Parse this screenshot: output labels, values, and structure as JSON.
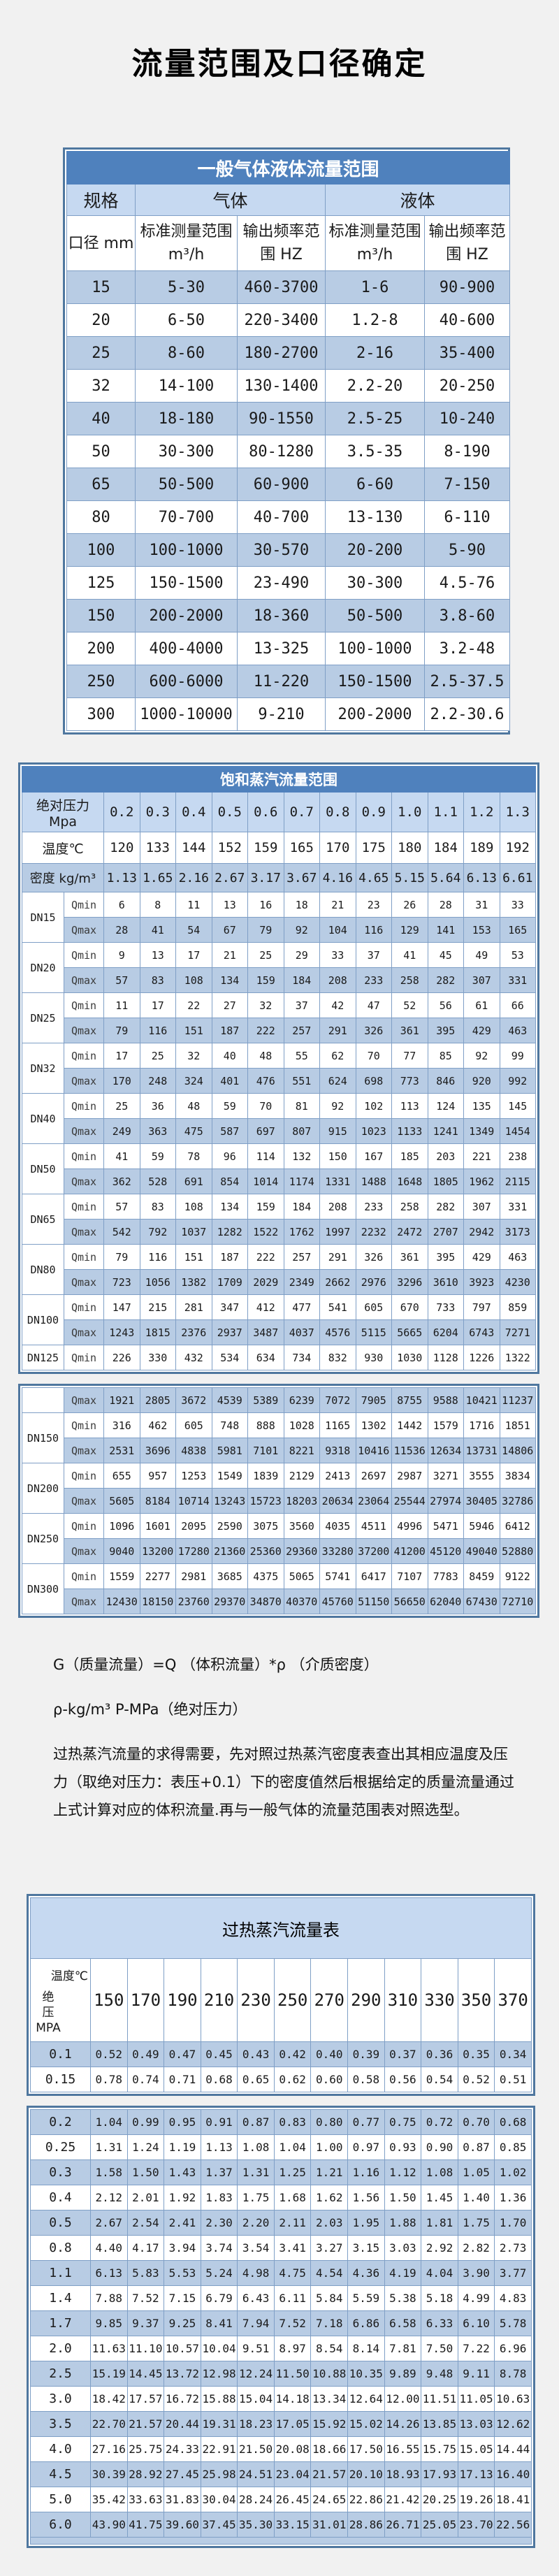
{
  "page_title": "流量范围及口径确定",
  "table1": {
    "title": "一般气体液体流量范围",
    "group_headers": {
      "spec": "规格",
      "gas": "气体",
      "liquid": "液体"
    },
    "sub_headers": {
      "diameter": "口径 mm",
      "range_line1": "标准测量范围",
      "range_line2": "m³/h",
      "freq_line1": "输出频率范",
      "freq_line2": "围 HZ"
    },
    "rows": [
      [
        "15",
        "5-30",
        "460-3700",
        "1-6",
        "90-900"
      ],
      [
        "20",
        "6-50",
        "220-3400",
        "1.2-8",
        "40-600"
      ],
      [
        "25",
        "8-60",
        "180-2700",
        "2-16",
        "35-400"
      ],
      [
        "32",
        "14-100",
        "130-1400",
        "2.2-20",
        "20-250"
      ],
      [
        "40",
        "18-180",
        "90-1550",
        "2.5-25",
        "10-240"
      ],
      [
        "50",
        "30-300",
        "80-1280",
        "3.5-35",
        "8-190"
      ],
      [
        "65",
        "50-500",
        "60-900",
        "6-60",
        "7-150"
      ],
      [
        "80",
        "70-700",
        "40-700",
        "13-130",
        "6-110"
      ],
      [
        "100",
        "100-1000",
        "30-570",
        "20-200",
        "5-90"
      ],
      [
        "125",
        "150-1500",
        "23-490",
        "30-300",
        "4.5-76"
      ],
      [
        "150",
        "200-2000",
        "18-360",
        "50-500",
        "3.8-60"
      ],
      [
        "200",
        "400-4000",
        "13-325",
        "100-1000",
        "3.2-48"
      ],
      [
        "250",
        "600-6000",
        "11-220",
        "150-1500",
        "2.5-37.5"
      ],
      [
        "300",
        "1000-10000",
        "9-210",
        "200-2000",
        "2.2-30.6"
      ]
    ]
  },
  "table2": {
    "title": "饱和蒸汽流量范围",
    "pressure_label": "绝对压力 Mpa",
    "pressures": [
      "0.2",
      "0.3",
      "0.4",
      "0.5",
      "0.6",
      "0.7",
      "0.8",
      "0.9",
      "1.0",
      "1.1",
      "1.2",
      "1.3"
    ],
    "temperature_label": "温度℃",
    "temperatures": [
      "120",
      "133",
      "144",
      "152",
      "159",
      "165",
      "170",
      "175",
      "180",
      "184",
      "189",
      "192"
    ],
    "density_label": "密度 kg/m³",
    "densities": [
      "1.13",
      "1.65",
      "2.16",
      "2.67",
      "3.17",
      "3.67",
      "4.16",
      "4.65",
      "5.15",
      "5.64",
      "6.13",
      "6.61"
    ],
    "qmin_label": "Qmin",
    "qmax_label": "Qmax",
    "block1": [
      {
        "dn": "DN15",
        "qmin": [
          "6",
          "8",
          "11",
          "13",
          "16",
          "18",
          "21",
          "23",
          "26",
          "28",
          "31",
          "33"
        ],
        "qmax": [
          "28",
          "41",
          "54",
          "67",
          "79",
          "92",
          "104",
          "116",
          "129",
          "141",
          "153",
          "165"
        ]
      },
      {
        "dn": "DN20",
        "qmin": [
          "9",
          "13",
          "17",
          "21",
          "25",
          "29",
          "33",
          "37",
          "41",
          "45",
          "49",
          "53"
        ],
        "qmax": [
          "57",
          "83",
          "108",
          "134",
          "159",
          "184",
          "208",
          "233",
          "258",
          "282",
          "307",
          "331"
        ]
      },
      {
        "dn": "DN25",
        "qmin": [
          "11",
          "17",
          "22",
          "27",
          "32",
          "37",
          "42",
          "47",
          "52",
          "56",
          "61",
          "66"
        ],
        "qmax": [
          "79",
          "116",
          "151",
          "187",
          "222",
          "257",
          "291",
          "326",
          "361",
          "395",
          "429",
          "463"
        ]
      },
      {
        "dn": "DN32",
        "qmin": [
          "17",
          "25",
          "32",
          "40",
          "48",
          "55",
          "62",
          "70",
          "77",
          "85",
          "92",
          "99"
        ],
        "qmax": [
          "170",
          "248",
          "324",
          "401",
          "476",
          "551",
          "624",
          "698",
          "773",
          "846",
          "920",
          "992"
        ]
      },
      {
        "dn": "DN40",
        "qmin": [
          "25",
          "36",
          "48",
          "59",
          "70",
          "81",
          "92",
          "102",
          "113",
          "124",
          "135",
          "145"
        ],
        "qmax": [
          "249",
          "363",
          "475",
          "587",
          "697",
          "807",
          "915",
          "1023",
          "1133",
          "1241",
          "1349",
          "1454"
        ]
      },
      {
        "dn": "DN50",
        "qmin": [
          "41",
          "59",
          "78",
          "96",
          "114",
          "132",
          "150",
          "167",
          "185",
          "203",
          "221",
          "238"
        ],
        "qmax": [
          "362",
          "528",
          "691",
          "854",
          "1014",
          "1174",
          "1331",
          "1488",
          "1648",
          "1805",
          "1962",
          "2115"
        ]
      },
      {
        "dn": "DN65",
        "qmin": [
          "57",
          "83",
          "108",
          "134",
          "159",
          "184",
          "208",
          "233",
          "258",
          "282",
          "307",
          "331"
        ],
        "qmax": [
          "542",
          "792",
          "1037",
          "1282",
          "1522",
          "1762",
          "1997",
          "2232",
          "2472",
          "2707",
          "2942",
          "3173"
        ]
      },
      {
        "dn": "DN80",
        "qmin": [
          "79",
          "116",
          "151",
          "187",
          "222",
          "257",
          "291",
          "326",
          "361",
          "395",
          "429",
          "463"
        ],
        "qmax": [
          "723",
          "1056",
          "1382",
          "1709",
          "2029",
          "2349",
          "2662",
          "2976",
          "3296",
          "3610",
          "3923",
          "4230"
        ]
      },
      {
        "dn": "DN100",
        "qmin": [
          "147",
          "215",
          "281",
          "347",
          "412",
          "477",
          "541",
          "605",
          "670",
          "733",
          "797",
          "859"
        ],
        "qmax": [
          "1243",
          "1815",
          "2376",
          "2937",
          "3487",
          "4037",
          "4576",
          "5115",
          "5665",
          "6204",
          "6743",
          "7271"
        ]
      },
      {
        "dn": "DN125",
        "qmin": [
          "226",
          "330",
          "432",
          "534",
          "634",
          "734",
          "832",
          "930",
          "1030",
          "1128",
          "1226",
          "1322"
        ]
      }
    ],
    "block2": [
      {
        "dn": "",
        "qmax": [
          "1921",
          "2805",
          "3672",
          "4539",
          "5389",
          "6239",
          "7072",
          "7905",
          "8755",
          "9588",
          "10421",
          "11237"
        ]
      },
      {
        "dn": "DN150",
        "qmin": [
          "316",
          "462",
          "605",
          "748",
          "888",
          "1028",
          "1165",
          "1302",
          "1442",
          "1579",
          "1716",
          "1851"
        ],
        "qmax": [
          "2531",
          "3696",
          "4838",
          "5981",
          "7101",
          "8221",
          "9318",
          "10416",
          "11536",
          "12634",
          "13731",
          "14806"
        ]
      },
      {
        "dn": "DN200",
        "qmin": [
          "655",
          "957",
          "1253",
          "1549",
          "1839",
          "2129",
          "2413",
          "2697",
          "2987",
          "3271",
          "3555",
          "3834"
        ],
        "qmax": [
          "5605",
          "8184",
          "10714",
          "13243",
          "15723",
          "18203",
          "20634",
          "23064",
          "25544",
          "27974",
          "30405",
          "32786"
        ]
      },
      {
        "dn": "DN250",
        "qmin": [
          "1096",
          "1601",
          "2095",
          "2590",
          "3075",
          "3560",
          "4035",
          "4511",
          "4996",
          "5471",
          "5946",
          "6412"
        ],
        "qmax": [
          "9040",
          "13200",
          "17280",
          "21360",
          "25360",
          "29360",
          "33280",
          "37200",
          "41200",
          "45120",
          "49040",
          "52880"
        ]
      },
      {
        "dn": "DN300",
        "qmin": [
          "1559",
          "2277",
          "2981",
          "3685",
          "4375",
          "5065",
          "5741",
          "6417",
          "7107",
          "7783",
          "8459",
          "9122"
        ],
        "qmax": [
          "12430",
          "18150",
          "23760",
          "29370",
          "34870",
          "40370",
          "45760",
          "51150",
          "56650",
          "62040",
          "67430",
          "72710"
        ]
      }
    ]
  },
  "notes": {
    "line1": "G（质量流量）=Q （体积流量）*ρ （介质密度）",
    "line2": "ρ-kg/m³ P-MPa（绝对压力）",
    "line3": "过热蒸汽流量的求得需要，先对照过热蒸汽密度表查出其相应温度及压力（取绝对压力：表压+0.1）下的密度值然后根据给定的质量流量通过上式计算对应的体积流量.再与一般气体的流量范围表对照选型。"
  },
  "table3": {
    "title": "过热蒸汽流量表",
    "corner": {
      "top": "温度℃",
      "bottom_chars": [
        "绝",
        "压",
        "MPA"
      ]
    },
    "temperatures": [
      "150",
      "170",
      "190",
      "210",
      "230",
      "250",
      "270",
      "290",
      "310",
      "330",
      "350",
      "370"
    ],
    "block1_rows": [
      {
        "p": "0.1",
        "v": [
          "0.52",
          "0.49",
          "0.47",
          "0.45",
          "0.43",
          "0.42",
          "0.40",
          "0.39",
          "0.37",
          "0.36",
          "0.35",
          "0.34"
        ]
      },
      {
        "p": "0.15",
        "v": [
          "0.78",
          "0.74",
          "0.71",
          "0.68",
          "0.65",
          "0.62",
          "0.60",
          "0.58",
          "0.56",
          "0.54",
          "0.52",
          "0.51"
        ]
      }
    ],
    "block2_rows": [
      {
        "p": "0.2",
        "v": [
          "1.04",
          "0.99",
          "0.95",
          "0.91",
          "0.87",
          "0.83",
          "0.80",
          "0.77",
          "0.75",
          "0.72",
          "0.70",
          "0.68"
        ]
      },
      {
        "p": "0.25",
        "v": [
          "1.31",
          "1.24",
          "1.19",
          "1.13",
          "1.08",
          "1.04",
          "1.00",
          "0.97",
          "0.93",
          "0.90",
          "0.87",
          "0.85"
        ]
      },
      {
        "p": "0.3",
        "v": [
          "1.58",
          "1.50",
          "1.43",
          "1.37",
          "1.31",
          "1.25",
          "1.21",
          "1.16",
          "1.12",
          "1.08",
          "1.05",
          "1.02"
        ]
      },
      {
        "p": "0.4",
        "v": [
          "2.12",
          "2.01",
          "1.92",
          "1.83",
          "1.75",
          "1.68",
          "1.62",
          "1.56",
          "1.50",
          "1.45",
          "1.40",
          "1.36"
        ]
      },
      {
        "p": "0.5",
        "v": [
          "2.67",
          "2.54",
          "2.41",
          "2.30",
          "2.20",
          "2.11",
          "2.03",
          "1.95",
          "1.88",
          "1.81",
          "1.75",
          "1.70"
        ]
      },
      {
        "p": "0.8",
        "v": [
          "4.40",
          "4.17",
          "3.94",
          "3.74",
          "3.54",
          "3.41",
          "3.27",
          "3.15",
          "3.03",
          "2.92",
          "2.82",
          "2.73"
        ]
      },
      {
        "p": "1.1",
        "v": [
          "6.13",
          "5.83",
          "5.53",
          "5.24",
          "4.98",
          "4.75",
          "4.54",
          "4.36",
          "4.19",
          "4.04",
          "3.90",
          "3.77"
        ]
      },
      {
        "p": "1.4",
        "v": [
          "7.88",
          "7.52",
          "7.15",
          "6.79",
          "6.43",
          "6.11",
          "5.84",
          "5.59",
          "5.38",
          "5.18",
          "4.99",
          "4.83"
        ]
      },
      {
        "p": "1.7",
        "v": [
          "9.85",
          "9.37",
          "9.25",
          "8.41",
          "7.94",
          "7.52",
          "7.18",
          "6.86",
          "6.58",
          "6.33",
          "6.10",
          "5.78"
        ]
      },
      {
        "p": "2.0",
        "v": [
          "11.63",
          "11.10",
          "10.57",
          "10.04",
          "9.51",
          "8.97",
          "8.54",
          "8.14",
          "7.81",
          "7.50",
          "7.22",
          "6.96"
        ]
      },
      {
        "p": "2.5",
        "v": [
          "15.19",
          "14.45",
          "13.72",
          "12.98",
          "12.24",
          "11.50",
          "10.88",
          "10.35",
          "9.89",
          "9.48",
          "9.11",
          "8.78"
        ]
      },
      {
        "p": "3.0",
        "v": [
          "18.42",
          "17.57",
          "16.72",
          "15.88",
          "15.04",
          "14.18",
          "13.34",
          "12.64",
          "12.00",
          "11.51",
          "11.05",
          "10.63"
        ]
      },
      {
        "p": "3.5",
        "v": [
          "22.70",
          "21.57",
          "20.44",
          "19.31",
          "18.23",
          "17.05",
          "15.92",
          "15.02",
          "14.26",
          "13.85",
          "13.03",
          "12.62"
        ]
      },
      {
        "p": "4.0",
        "v": [
          "27.16",
          "25.75",
          "24.33",
          "22.91",
          "21.50",
          "20.08",
          "18.66",
          "17.50",
          "16.55",
          "15.75",
          "15.05",
          "14.44"
        ]
      },
      {
        "p": "4.5",
        "v": [
          "30.39",
          "28.92",
          "27.45",
          "25.98",
          "24.51",
          "23.04",
          "21.57",
          "20.10",
          "18.93",
          "17.93",
          "17.13",
          "16.40"
        ]
      },
      {
        "p": "5.0",
        "v": [
          "35.42",
          "33.63",
          "31.83",
          "30.04",
          "28.24",
          "26.45",
          "24.65",
          "22.86",
          "21.42",
          "20.25",
          "19.26",
          "18.41"
        ]
      },
      {
        "p": "6.0",
        "v": [
          "43.90",
          "41.75",
          "39.60",
          "37.45",
          "35.30",
          "33.15",
          "31.01",
          "28.86",
          "26.71",
          "25.05",
          "23.70",
          "22.56"
        ]
      }
    ]
  }
}
